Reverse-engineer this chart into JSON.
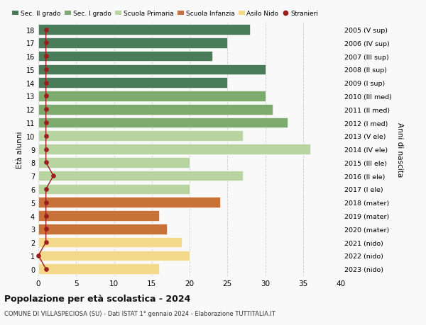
{
  "ages": [
    18,
    17,
    16,
    15,
    14,
    13,
    12,
    11,
    10,
    9,
    8,
    7,
    6,
    5,
    4,
    3,
    2,
    1,
    0
  ],
  "right_labels": [
    "2005 (V sup)",
    "2006 (IV sup)",
    "2007 (III sup)",
    "2008 (II sup)",
    "2009 (I sup)",
    "2010 (III med)",
    "2011 (II med)",
    "2012 (I med)",
    "2013 (V ele)",
    "2014 (IV ele)",
    "2015 (III ele)",
    "2016 (II ele)",
    "2017 (I ele)",
    "2018 (mater)",
    "2019 (mater)",
    "2020 (mater)",
    "2021 (nido)",
    "2022 (nido)",
    "2023 (nido)"
  ],
  "bar_values": [
    28,
    25,
    23,
    30,
    25,
    30,
    31,
    33,
    27,
    36,
    20,
    27,
    20,
    24,
    16,
    17,
    19,
    20,
    16
  ],
  "bar_colors": [
    "#4a7c59",
    "#4a7c59",
    "#4a7c59",
    "#4a7c59",
    "#4a7c59",
    "#7daa6e",
    "#7daa6e",
    "#7daa6e",
    "#b8d4a0",
    "#b8d4a0",
    "#b8d4a0",
    "#b8d4a0",
    "#b8d4a0",
    "#c8723a",
    "#c8723a",
    "#c8723a",
    "#f5d98a",
    "#f5d98a",
    "#f5d98a"
  ],
  "stranieri_values": [
    1,
    1,
    1,
    1,
    1,
    1,
    1,
    1,
    1,
    1,
    1,
    2,
    1,
    1,
    1,
    1,
    1,
    0,
    1
  ],
  "stranieri_color": "#9b1c1c",
  "title_main": "Popolazione per età scolastica - 2024",
  "title_sub": "COMUNE DI VILLASPECIOSA (SU) - Dati ISTAT 1° gennaio 2024 - Elaborazione TUTTITALIA.IT",
  "right_ylabel": "Anni di nascita",
  "xlim": [
    0,
    40
  ],
  "xticks": [
    0,
    5,
    10,
    15,
    20,
    25,
    30,
    35,
    40
  ],
  "legend_labels": [
    "Sec. II grado",
    "Sec. I grado",
    "Scuola Primaria",
    "Scuola Infanzia",
    "Asilo Nido",
    "Stranieri"
  ],
  "legend_colors": [
    "#4a7c59",
    "#7daa6e",
    "#b8d4a0",
    "#c8723a",
    "#f5d98a",
    "#9b1c1c"
  ],
  "bg_color": "#f9f9f9",
  "grid_color": "#cccccc",
  "bar_height": 0.78
}
